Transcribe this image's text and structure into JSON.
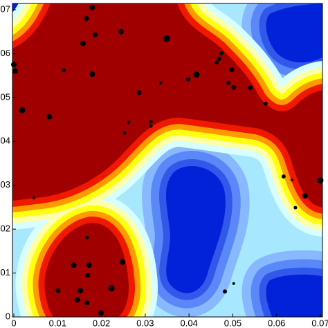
{
  "chart_data": {
    "type": "scatter",
    "x": [
      0.0179,
      0.0166,
      0.0186,
      0.0158,
      0.0245,
      0.0349,
      0.0,
      0.0003,
      0.0114,
      0.0179,
      0.0019,
      0.0081,
      0.0335,
      0.0286,
      0.0398,
      0.0417,
      0.0474,
      0.0469,
      0.0463,
      0.0498,
      0.049,
      0.0502,
      0.054,
      0.0575,
      0.0313,
      0.0313,
      0.0262,
      0.0253,
      0.0046,
      0.0616,
      0.0635,
      0.0665,
      0.0643,
      0.07,
      0.0167,
      0.0137,
      0.0172,
      0.0248,
      0.0169,
      0.0101,
      0.0152,
      0.0145,
      0.0167,
      0.0223,
      0.0199,
      0.0482,
      0.0502
    ],
    "y": [
      0.0705,
      0.068,
      0.0643,
      0.0623,
      0.065,
      0.0634,
      0.0575,
      0.056,
      0.0562,
      0.0553,
      0.0471,
      0.0456,
      0.0533,
      0.0511,
      0.0541,
      0.0552,
      0.0601,
      0.0588,
      0.058,
      0.0563,
      0.0533,
      0.0523,
      0.0522,
      0.0486,
      0.0445,
      0.0435,
      0.0443,
      0.0419,
      0.0271,
      0.032,
      0.0312,
      0.0276,
      0.0249,
      0.0311,
      0.0181,
      0.0118,
      0.0118,
      0.0125,
      0.0095,
      0.006,
      0.006,
      0.0039,
      0.0032,
      0.0065,
      0.0009,
      0.0058,
      0.0076
    ],
    "sizes": [
      4,
      3.5,
      3.5,
      4,
      4,
      5,
      4,
      4,
      3,
      4,
      4.5,
      4,
      2.5,
      3.5,
      3,
      4.5,
      3,
      3,
      3,
      3.5,
      3,
      3.5,
      3.5,
      3,
      2.5,
      2.5,
      2.5,
      2.5,
      2,
      3,
      2,
      4,
      2.5,
      4.5,
      2.5,
      4,
      4,
      4,
      3.5,
      3.5,
      4,
      4,
      3.5,
      4.5,
      4,
      3,
      2
    ],
    "color": "#000000",
    "xlim": [
      0,
      0.07
    ],
    "ylim": [
      0,
      0.07
    ],
    "xticks": [
      0,
      0.01,
      0.02,
      0.03,
      0.04,
      0.05,
      0.06,
      0.07
    ],
    "yticks": [
      0,
      0.01,
      0.02,
      0.03,
      0.04,
      0.05,
      0.06,
      0.07
    ]
  }
}
